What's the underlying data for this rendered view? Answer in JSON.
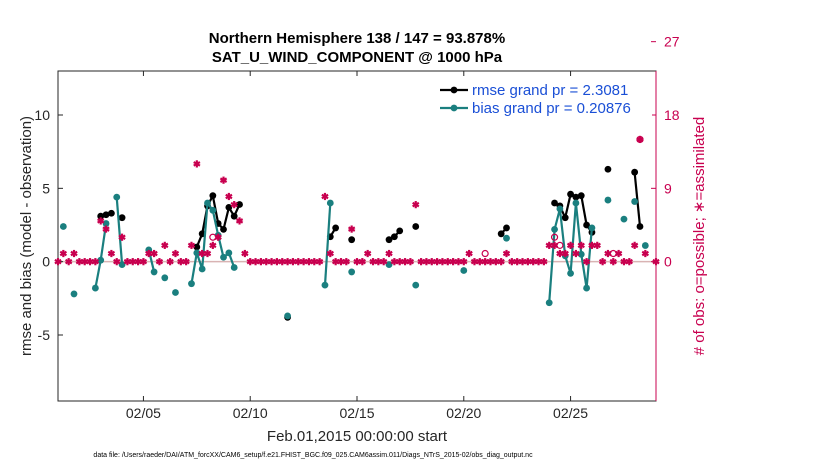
{
  "chart_data": {
    "type": "line",
    "title": "Northern Hemisphere 138 / 147 = 93.878%",
    "subtitle": "SAT_U_WIND_COMPONENT @ 1000 hPa",
    "xlabel": "Feb.01,2015 00:00:00 start",
    "ylabel": "rmse and bias (model - observation)",
    "ylabel_right": "# of obs: o=possible; ∗=assimilated",
    "footnote": "data file: /Users/raeder/DAI/ATM_forcXX/CAM6_setup/f.e21.FHIST_BGC.f09_025.CAM6assim.011/Diags_NTrS_2015-02/obs_diag_output.nc",
    "x_unit": "day of Feb 2015",
    "xlim": [
      1.0,
      29.0
    ],
    "ylim": [
      -9.5,
      13.0
    ],
    "y2lim": [
      -17.1,
      23.4
    ],
    "x_ticks": [
      5,
      10,
      15,
      20,
      25
    ],
    "x_tick_labels": [
      "02/05",
      "02/10",
      "02/15",
      "02/20",
      "02/25"
    ],
    "y_ticks": [
      -5,
      0,
      5,
      10
    ],
    "y_tick_labels": [
      "-5",
      "0",
      "5",
      "10"
    ],
    "y2_ticks": [
      0,
      9,
      18,
      27
    ],
    "y2_tick_labels": [
      "0",
      "9",
      "18",
      "27"
    ],
    "zero_line": 0,
    "legend_position": "top-right",
    "series": [
      {
        "name": "rmse grand pr = 2.3081",
        "axis": "left",
        "color": "#000000",
        "marker": "filled-circle",
        "points": [
          [
            3.0,
            3.1
          ],
          [
            3.25,
            3.2
          ],
          [
            3.5,
            3.3
          ],
          [
            4.0,
            3.0
          ],
          [
            7.5,
            1.0
          ],
          [
            7.75,
            1.9
          ],
          [
            8.0,
            3.8
          ],
          [
            8.25,
            4.5
          ],
          [
            8.5,
            2.6
          ],
          [
            8.75,
            2.2
          ],
          [
            9.0,
            3.7
          ],
          [
            9.25,
            3.1
          ],
          [
            9.5,
            3.9
          ],
          [
            11.75,
            -3.8
          ],
          [
            13.75,
            1.7
          ],
          [
            14.0,
            2.3
          ],
          [
            14.75,
            1.5
          ],
          [
            16.5,
            1.5
          ],
          [
            16.75,
            1.7
          ],
          [
            17.0,
            2.1
          ],
          [
            17.75,
            2.4
          ],
          [
            21.75,
            1.9
          ],
          [
            22.0,
            2.3
          ],
          [
            24.25,
            4.0
          ],
          [
            24.5,
            3.8
          ],
          [
            24.75,
            3.0
          ],
          [
            25.0,
            4.6
          ],
          [
            25.25,
            4.4
          ],
          [
            25.5,
            4.5
          ],
          [
            25.75,
            2.5
          ],
          [
            26.0,
            2.0
          ],
          [
            26.75,
            6.3
          ],
          [
            28.0,
            6.1
          ],
          [
            28.25,
            2.4
          ]
        ]
      },
      {
        "name": "bias grand pr = 0.20876",
        "axis": "left",
        "color": "#1a7f7f",
        "marker": "filled-circle",
        "points": [
          [
            1.25,
            2.4
          ],
          [
            1.75,
            -2.2
          ],
          [
            2.75,
            -1.8
          ],
          [
            3.0,
            0.1
          ],
          [
            3.25,
            2.6
          ],
          [
            3.75,
            4.4
          ],
          [
            4.0,
            -0.2
          ],
          [
            5.25,
            0.8
          ],
          [
            5.5,
            -0.7
          ],
          [
            6.0,
            -1.1
          ],
          [
            6.5,
            -2.1
          ],
          [
            7.25,
            -1.5
          ],
          [
            7.5,
            0.6
          ],
          [
            7.75,
            -0.5
          ],
          [
            8.0,
            4.0
          ],
          [
            8.25,
            3.5
          ],
          [
            8.5,
            1.8
          ],
          [
            8.75,
            0.3
          ],
          [
            9.0,
            0.6
          ],
          [
            9.25,
            -0.4
          ],
          [
            11.75,
            -3.7
          ],
          [
            13.5,
            -1.6
          ],
          [
            13.75,
            4.0
          ],
          [
            14.75,
            -0.7
          ],
          [
            16.5,
            -0.2
          ],
          [
            17.75,
            -1.6
          ],
          [
            20.0,
            -0.6
          ],
          [
            22.0,
            1.6
          ],
          [
            24.0,
            -2.8
          ],
          [
            24.25,
            2.2
          ],
          [
            24.5,
            3.6
          ],
          [
            24.75,
            0.4
          ],
          [
            25.0,
            -0.8
          ],
          [
            25.25,
            4.0
          ],
          [
            25.5,
            0.5
          ],
          [
            25.75,
            -1.8
          ],
          [
            26.0,
            2.3
          ],
          [
            26.75,
            4.2
          ],
          [
            27.5,
            2.9
          ],
          [
            28.0,
            4.1
          ],
          [
            28.5,
            1.1
          ]
        ]
      },
      {
        "name": "possible",
        "axis": "right",
        "color": "#c8004f",
        "marker": "open-circle",
        "points": [
          [
            8.25,
            3.0
          ],
          [
            21.0,
            1.0
          ],
          [
            24.25,
            3.0
          ],
          [
            24.5,
            2.0
          ],
          [
            27.0,
            1.0
          ],
          [
            28.25,
            15.0
          ]
        ]
      },
      {
        "name": "assimilated",
        "axis": "right",
        "color": "#c8004f",
        "marker": "asterisk",
        "points": [
          [
            1.0,
            0
          ],
          [
            1.25,
            1
          ],
          [
            1.5,
            0
          ],
          [
            1.75,
            1
          ],
          [
            2.0,
            0
          ],
          [
            2.25,
            0
          ],
          [
            2.5,
            0
          ],
          [
            2.75,
            0
          ],
          [
            3.0,
            5
          ],
          [
            3.25,
            4
          ],
          [
            3.5,
            1
          ],
          [
            3.75,
            0
          ],
          [
            4.0,
            3
          ],
          [
            4.25,
            0
          ],
          [
            4.5,
            0
          ],
          [
            4.75,
            0
          ],
          [
            5.0,
            0
          ],
          [
            5.25,
            1
          ],
          [
            5.5,
            1
          ],
          [
            5.75,
            0
          ],
          [
            6.0,
            2
          ],
          [
            6.25,
            0
          ],
          [
            6.5,
            1
          ],
          [
            6.75,
            0
          ],
          [
            7.0,
            0
          ],
          [
            7.25,
            2
          ],
          [
            7.5,
            12
          ],
          [
            7.75,
            1
          ],
          [
            8.0,
            1
          ],
          [
            8.25,
            2
          ],
          [
            8.5,
            3
          ],
          [
            8.75,
            10
          ],
          [
            9.0,
            8
          ],
          [
            9.25,
            7
          ],
          [
            9.5,
            5
          ],
          [
            9.75,
            1
          ],
          [
            10.0,
            0
          ],
          [
            10.25,
            0
          ],
          [
            10.5,
            0
          ],
          [
            10.75,
            0
          ],
          [
            11.0,
            0
          ],
          [
            11.25,
            0
          ],
          [
            11.5,
            0
          ],
          [
            11.75,
            0
          ],
          [
            12.0,
            0
          ],
          [
            12.25,
            0
          ],
          [
            12.5,
            0
          ],
          [
            12.75,
            0
          ],
          [
            13.0,
            0
          ],
          [
            13.25,
            0
          ],
          [
            13.5,
            8
          ],
          [
            13.75,
            1
          ],
          [
            14.0,
            0
          ],
          [
            14.25,
            0
          ],
          [
            14.5,
            0
          ],
          [
            14.75,
            4
          ],
          [
            15.0,
            0
          ],
          [
            15.25,
            0
          ],
          [
            15.5,
            1
          ],
          [
            15.75,
            0
          ],
          [
            16.0,
            0
          ],
          [
            16.25,
            0
          ],
          [
            16.5,
            1
          ],
          [
            16.75,
            0
          ],
          [
            17.0,
            0
          ],
          [
            17.25,
            0
          ],
          [
            17.5,
            0
          ],
          [
            17.75,
            7
          ],
          [
            18.0,
            0
          ],
          [
            18.25,
            0
          ],
          [
            18.5,
            0
          ],
          [
            18.75,
            0
          ],
          [
            19.0,
            0
          ],
          [
            19.25,
            0
          ],
          [
            19.5,
            0
          ],
          [
            19.75,
            0
          ],
          [
            20.0,
            0
          ],
          [
            20.25,
            1
          ],
          [
            20.5,
            0
          ],
          [
            20.75,
            0
          ],
          [
            21.0,
            0
          ],
          [
            21.25,
            0
          ],
          [
            21.5,
            0
          ],
          [
            21.75,
            0
          ],
          [
            22.0,
            1
          ],
          [
            22.25,
            0
          ],
          [
            22.5,
            0
          ],
          [
            22.75,
            0
          ],
          [
            23.0,
            0
          ],
          [
            23.25,
            0
          ],
          [
            23.5,
            0
          ],
          [
            23.75,
            0
          ],
          [
            24.0,
            2
          ],
          [
            24.25,
            2
          ],
          [
            24.5,
            1
          ],
          [
            24.75,
            1
          ],
          [
            25.0,
            2
          ],
          [
            25.25,
            1
          ],
          [
            25.5,
            2
          ],
          [
            25.75,
            0
          ],
          [
            26.0,
            2
          ],
          [
            26.25,
            2
          ],
          [
            26.5,
            0
          ],
          [
            26.75,
            1
          ],
          [
            27.0,
            0
          ],
          [
            27.25,
            1
          ],
          [
            27.5,
            0
          ],
          [
            27.75,
            0
          ],
          [
            28.0,
            2
          ],
          [
            28.25,
            15
          ],
          [
            28.5,
            1
          ],
          [
            29.0,
            0
          ]
        ]
      }
    ]
  }
}
